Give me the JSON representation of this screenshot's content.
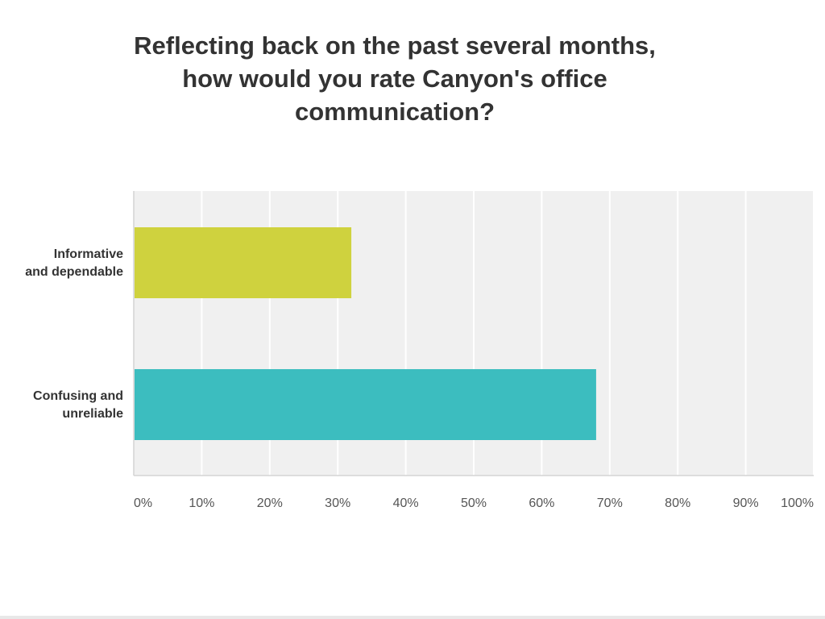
{
  "chart_data": {
    "type": "bar",
    "orientation": "horizontal",
    "title": "Reflecting back on the past several months, how would you rate Canyon's office communication?",
    "title_lines": [
      "Reflecting back on the past several months,",
      "how would you rate Canyon's office",
      "communication?"
    ],
    "categories": [
      {
        "lines": [
          "Informative",
          "and dependable"
        ]
      },
      {
        "lines": [
          "Confusing and",
          "unreliable"
        ]
      }
    ],
    "values": [
      32,
      68
    ],
    "colors": [
      "#cfd23e",
      "#3cbdbf"
    ],
    "xlim": [
      0,
      100
    ],
    "x_ticks": [
      "0%",
      "10%",
      "20%",
      "30%",
      "40%",
      "50%",
      "60%",
      "70%",
      "80%",
      "90%",
      "100%"
    ],
    "grid": true,
    "plot_background": "#f0f0f0",
    "grid_color": "#ffffff"
  }
}
